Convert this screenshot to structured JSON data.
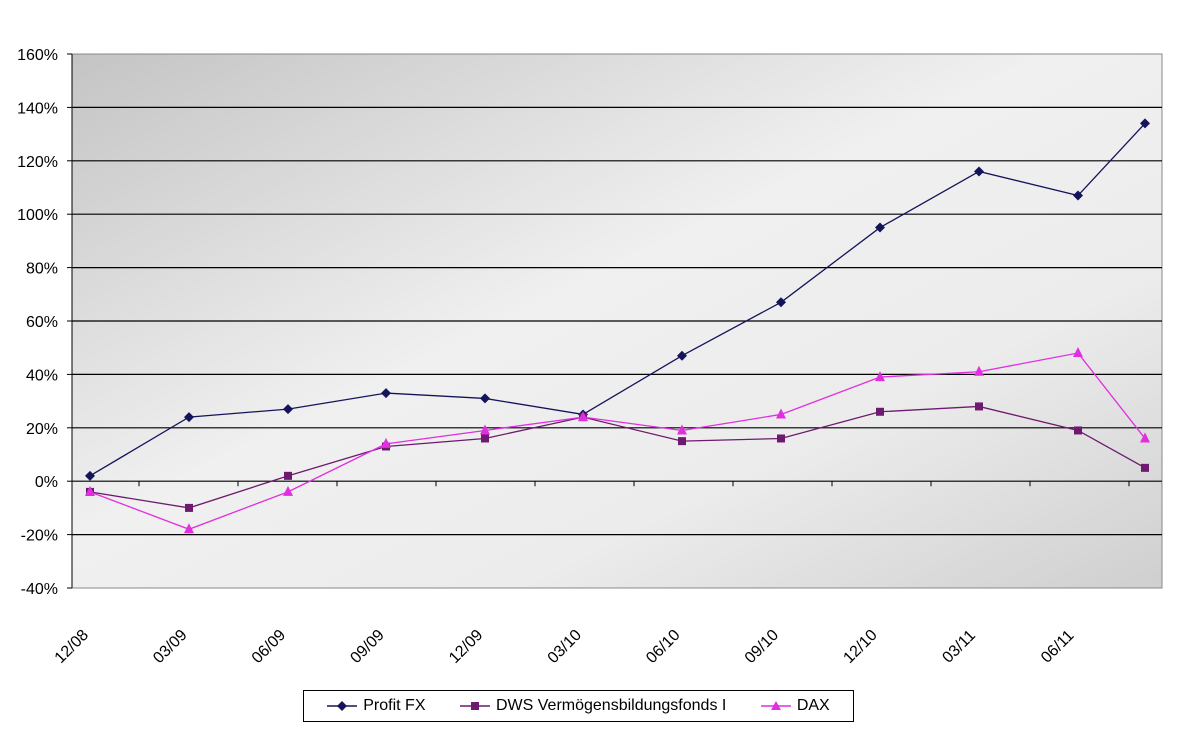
{
  "chart_data": {
    "type": "line",
    "title": "",
    "xlabel": "",
    "ylabel": "",
    "categories": [
      "12/08",
      "03/09",
      "06/09",
      "09/09",
      "12/09",
      "03/10",
      "06/10",
      "09/10",
      "12/10",
      "03/11",
      "06/11",
      ""
    ],
    "x_tick_labels": [
      "12/08",
      "03/09",
      "06/09",
      "09/09",
      "12/09",
      "03/10",
      "06/10",
      "09/10",
      "12/10",
      "03/11",
      "06/11"
    ],
    "ylim": [
      -40,
      160
    ],
    "y_ticks": [
      "-40%",
      "-20%",
      "0%",
      "20%",
      "40%",
      "60%",
      "80%",
      "100%",
      "120%",
      "140%",
      "160%"
    ],
    "y_tick_values": [
      -40,
      -20,
      0,
      20,
      40,
      60,
      80,
      100,
      120,
      140,
      160
    ],
    "grid": true,
    "legend_position": "bottom",
    "series": [
      {
        "name": "Profit FX",
        "color": "#14145a",
        "marker": "diamond",
        "values": [
          2,
          24,
          27,
          33,
          31,
          25,
          47,
          67,
          95,
          116,
          107,
          134
        ]
      },
      {
        "name": "DWS Vermögensbildungsfonds I",
        "color": "#6e1a6e",
        "marker": "square",
        "values": [
          -4,
          -10,
          2,
          13,
          16,
          24,
          15,
          16,
          26,
          28,
          19,
          5
        ]
      },
      {
        "name": "DAX",
        "color": "#e02ee0",
        "marker": "triangle",
        "values": [
          -4,
          -18,
          -4,
          14,
          19,
          24,
          19,
          25,
          39,
          41,
          48,
          16
        ]
      }
    ]
  },
  "legend": {
    "items": [
      {
        "label": "Profit FX"
      },
      {
        "label": "DWS Vermögensbildungsfonds I"
      },
      {
        "label": "DAX"
      }
    ]
  }
}
